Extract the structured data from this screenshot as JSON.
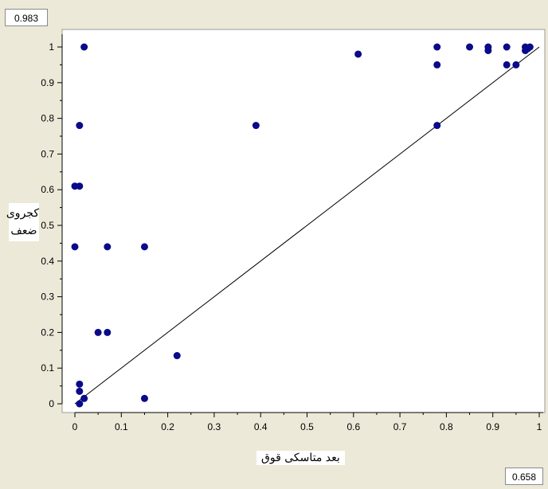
{
  "readouts": {
    "y_value": "0.983",
    "x_value": "0.658"
  },
  "colors": {
    "background": "#ece9d8",
    "plot_area": "#ffffff",
    "marker": "#0a0a8a",
    "line": "#000000"
  },
  "chart_data": {
    "type": "scatter",
    "title": "",
    "xlabel": "بعد متاسکی قوق",
    "ylabel_lines": [
      "کجروی",
      "ضعف"
    ],
    "xlim": [
      0,
      1
    ],
    "ylim": [
      0,
      1
    ],
    "x_ticks": [
      "0",
      "0.1",
      "0.2",
      "0.3",
      "0.4",
      "0.5",
      "0.6",
      "0.7",
      "0.8",
      "0.9",
      "1"
    ],
    "y_ticks": [
      "0",
      "0.1",
      "0.2",
      "0.3",
      "0.4",
      "0.5",
      "0.6",
      "0.7",
      "0.8",
      "0.9",
      "1"
    ],
    "reference_line": {
      "from": [
        0,
        0
      ],
      "to": [
        1,
        1
      ]
    },
    "points": [
      [
        0.02,
        1.0
      ],
      [
        0.01,
        0.78
      ],
      [
        0.0,
        0.61
      ],
      [
        0.01,
        0.61
      ],
      [
        0.0,
        0.44
      ],
      [
        0.07,
        0.44
      ],
      [
        0.15,
        0.44
      ],
      [
        0.05,
        0.2
      ],
      [
        0.07,
        0.2
      ],
      [
        0.22,
        0.135
      ],
      [
        0.01,
        0.055
      ],
      [
        0.01,
        0.035
      ],
      [
        0.02,
        0.015
      ],
      [
        0.01,
        0.0
      ],
      [
        0.15,
        0.015
      ],
      [
        0.39,
        0.78
      ],
      [
        0.61,
        0.98
      ],
      [
        0.78,
        1.0
      ],
      [
        0.78,
        0.95
      ],
      [
        0.78,
        0.78
      ],
      [
        0.85,
        1.0
      ],
      [
        0.89,
        1.0
      ],
      [
        0.89,
        0.99
      ],
      [
        0.93,
        1.0
      ],
      [
        0.93,
        0.95
      ],
      [
        0.95,
        0.95
      ],
      [
        0.97,
        1.0
      ],
      [
        0.97,
        0.99
      ],
      [
        0.975,
        0.995
      ],
      [
        0.98,
        1.0
      ]
    ]
  }
}
